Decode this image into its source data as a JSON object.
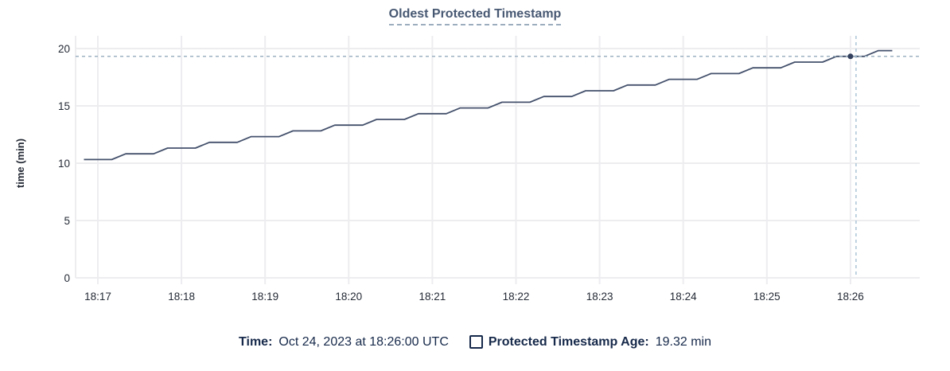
{
  "chart_data": {
    "type": "line",
    "title": "Oldest Protected Timestamp",
    "xlabel": "",
    "ylabel": "time (min)",
    "ylim": [
      0,
      20
    ],
    "grid": true,
    "y_ticks": [
      0,
      5,
      10,
      15,
      20
    ],
    "x_ticks": [
      "18:17",
      "18:18",
      "18:19",
      "18:20",
      "18:21",
      "18:22",
      "18:23",
      "18:24",
      "18:25",
      "18:26"
    ],
    "series": [
      {
        "name": "Protected Timestamp Age",
        "x": [
          "18:16:50",
          "18:17:00",
          "18:17:10",
          "18:17:20",
          "18:17:30",
          "18:17:40",
          "18:17:50",
          "18:18:00",
          "18:18:10",
          "18:18:20",
          "18:18:30",
          "18:18:40",
          "18:18:50",
          "18:19:00",
          "18:19:10",
          "18:19:20",
          "18:19:30",
          "18:19:40",
          "18:19:50",
          "18:20:00",
          "18:20:10",
          "18:20:20",
          "18:20:30",
          "18:20:40",
          "18:20:50",
          "18:21:00",
          "18:21:10",
          "18:21:20",
          "18:21:30",
          "18:21:40",
          "18:21:50",
          "18:22:00",
          "18:22:10",
          "18:22:20",
          "18:22:30",
          "18:22:40",
          "18:22:50",
          "18:23:00",
          "18:23:10",
          "18:23:20",
          "18:23:30",
          "18:23:40",
          "18:23:50",
          "18:24:00",
          "18:24:10",
          "18:24:20",
          "18:24:30",
          "18:24:40",
          "18:24:50",
          "18:25:00",
          "18:25:10",
          "18:25:20",
          "18:25:30",
          "18:25:40",
          "18:25:50",
          "18:26:00",
          "18:26:10",
          "18:26:20",
          "18:26:30"
        ],
        "values": [
          10.32,
          10.32,
          10.32,
          10.82,
          10.82,
          10.82,
          11.32,
          11.32,
          11.32,
          11.82,
          11.82,
          11.82,
          12.32,
          12.32,
          12.32,
          12.82,
          12.82,
          12.82,
          13.32,
          13.32,
          13.32,
          13.82,
          13.82,
          13.82,
          14.32,
          14.32,
          14.32,
          14.82,
          14.82,
          14.82,
          15.32,
          15.32,
          15.32,
          15.82,
          15.82,
          15.82,
          16.32,
          16.32,
          16.32,
          16.82,
          16.82,
          16.82,
          17.32,
          17.32,
          17.32,
          17.82,
          17.82,
          17.82,
          18.32,
          18.32,
          18.32,
          18.82,
          18.82,
          18.82,
          19.32,
          19.32,
          19.32,
          19.82,
          19.82
        ]
      }
    ],
    "hover_point": {
      "x": "18:26:00",
      "y": 19.32
    },
    "legend_position": "bottom"
  },
  "legend": {
    "time": {
      "label": "Time:",
      "value": "Oct 24, 2023 at 18:26:00 UTC"
    },
    "series": {
      "label": "Protected Timestamp Age:",
      "value": "19.32 min"
    }
  },
  "colors": {
    "line": "#44516c",
    "dot": "#33415e",
    "title_text": "#475872",
    "tick_text": "#242a35",
    "legend_text": "#16294a",
    "grid": "#ededf0",
    "crosshair_h": "#9db1c1",
    "crosshair_v": "#abc3d6"
  }
}
